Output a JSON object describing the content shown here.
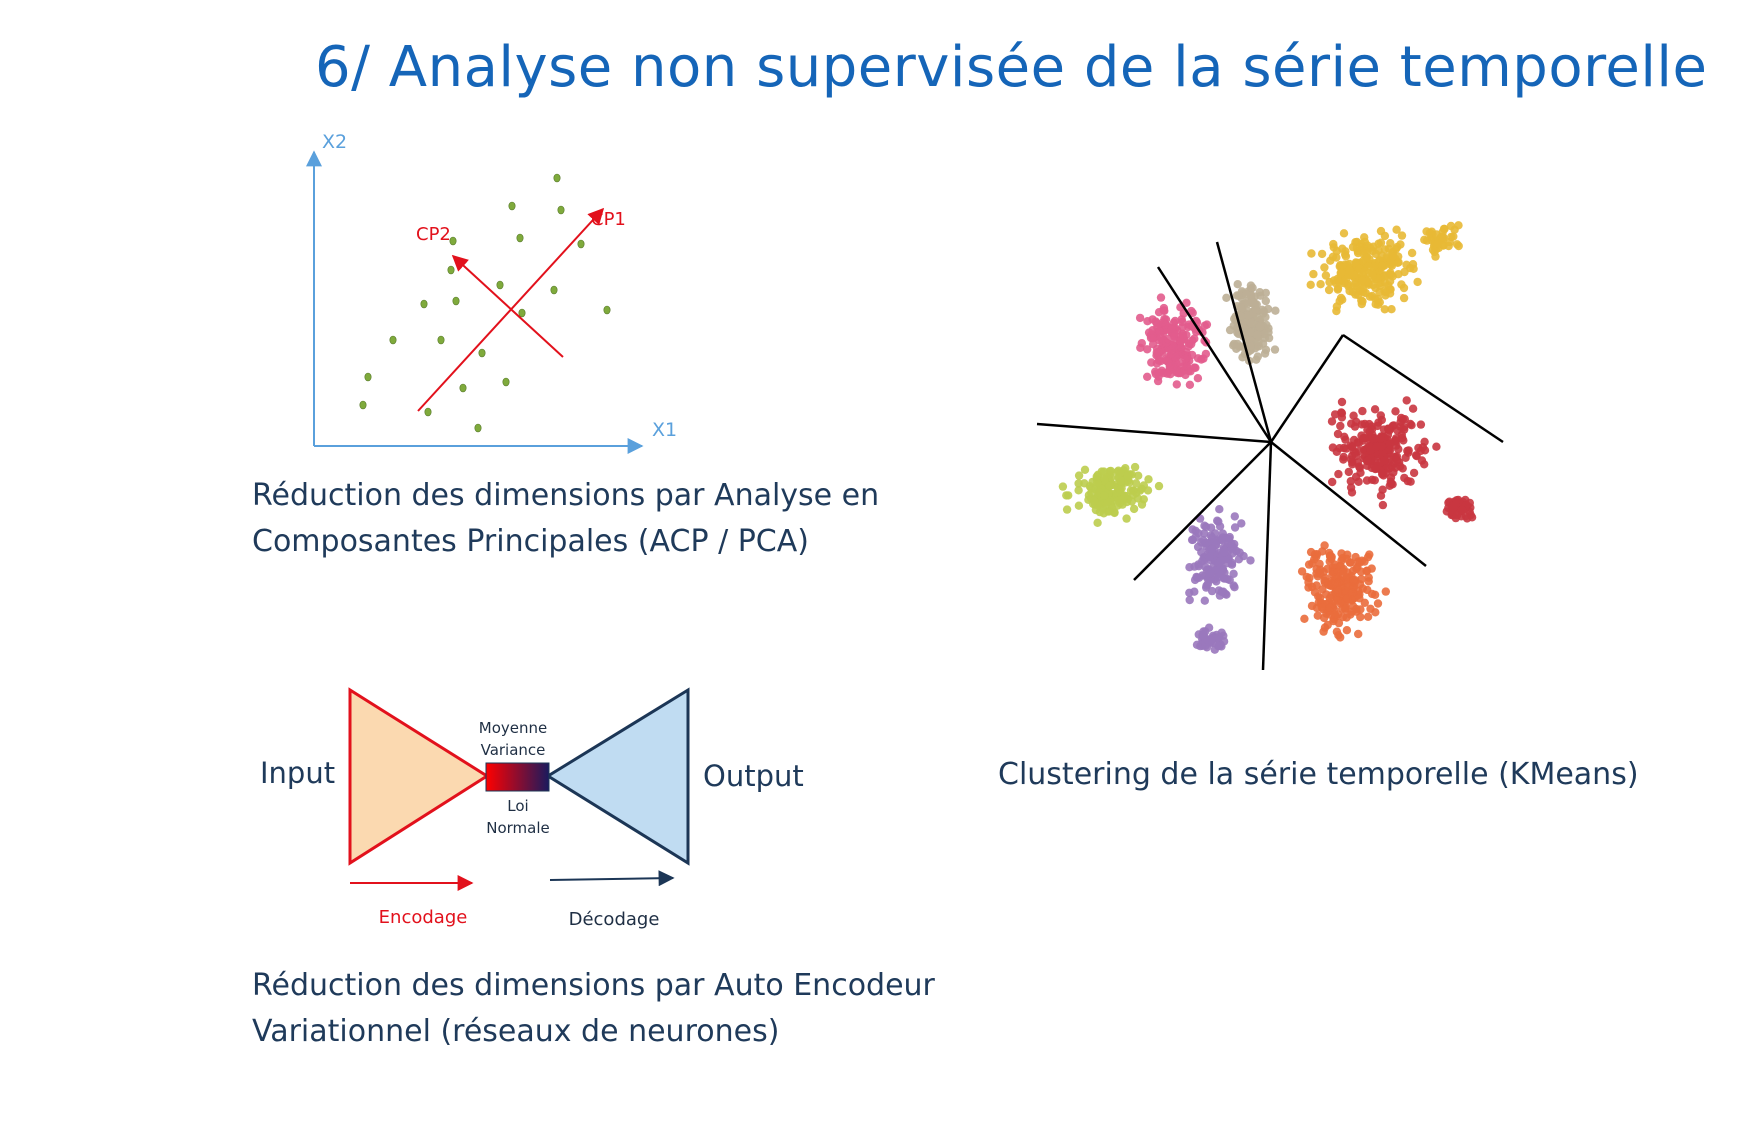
{
  "title": "6/ Analyse non supervisée de la série temporelle",
  "pca": {
    "axis_x": "X1",
    "axis_y": "X2",
    "cp1": "CP1",
    "cp2": "CP2",
    "caption_line1": "Réduction des dimensions par Analyse en",
    "caption_line2": "Composantes Principales (ACP / PCA)",
    "colors": {
      "axis": "#5aa0dc",
      "points": "#7faa3c",
      "arrows": "#e2111c"
    }
  },
  "vae": {
    "input": "Input",
    "output": "Output",
    "latent_top_1": "Moyenne",
    "latent_top_2": "Variance",
    "latent_bottom_1": "Loi",
    "latent_bottom_2": "Normale",
    "encodage": "Encodage",
    "decodage": "Décodage",
    "caption_line1": "Réduction des dimensions par Auto Encodeur",
    "caption_line2": "Variationnel (réseaux de neurones)",
    "colors": {
      "encoder_fill": "#fbd9b0",
      "encoder_stroke": "#e2111c",
      "decoder_fill": "#c0dcf2",
      "decoder_stroke": "#1c3656"
    }
  },
  "clustering": {
    "caption": "Clustering de la série temporelle (KMeans)",
    "colors": [
      "#e8b935",
      "#bdaf96",
      "#e25c8d",
      "#c93640",
      "#bccd4e",
      "#9a78bd",
      "#ea6d3c"
    ]
  }
}
